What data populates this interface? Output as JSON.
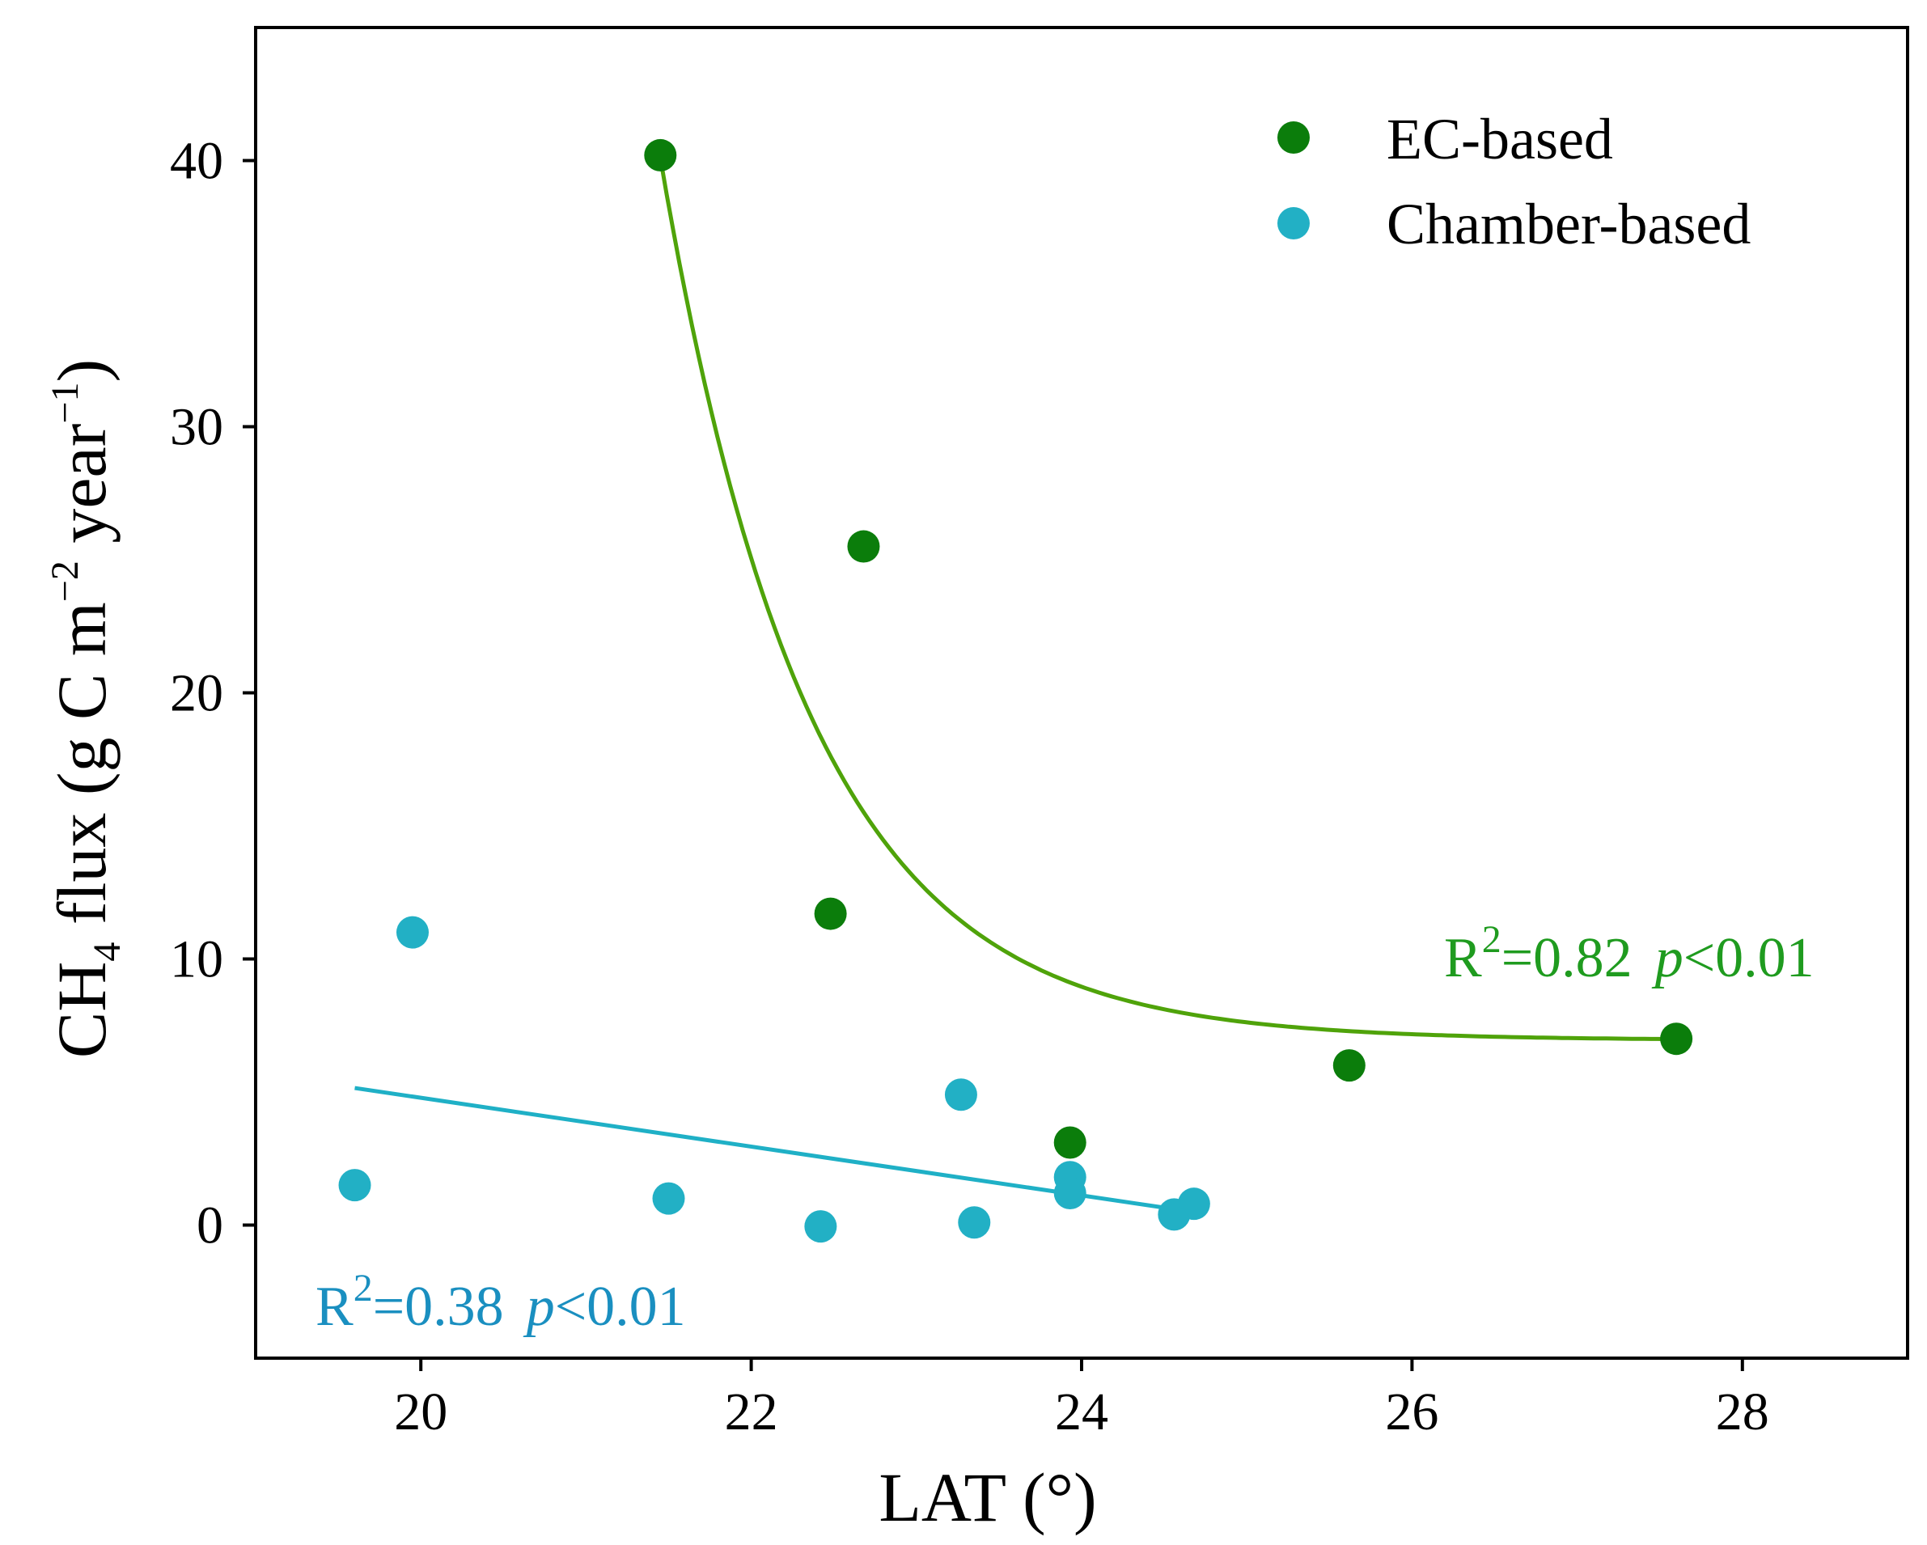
{
  "chart_data": {
    "type": "scatter",
    "xlabel": "LAT (°)",
    "ylabel_parts": {
      "main": "CH",
      "sub": "4",
      "rest1": " flux (g C m",
      "sup1": "−2",
      "rest2": " year",
      "sup2": "−1",
      "rest3": ")"
    },
    "xlim": [
      19.0,
      29.0
    ],
    "ylim": [
      -5,
      45
    ],
    "xticks": [
      20,
      22,
      24,
      26,
      28
    ],
    "xtick_labels": [
      "20",
      "22",
      "24",
      "26",
      "28"
    ],
    "yticks": [
      0,
      10,
      20,
      30,
      40
    ],
    "ytick_labels": [
      "0",
      "10",
      "20",
      "30",
      "40"
    ],
    "legend_position": "top-right",
    "series": [
      {
        "name": "EC-based",
        "color": "#0b7d0b",
        "points": [
          {
            "x": 21.45,
            "y": 40.2
          },
          {
            "x": 22.68,
            "y": 25.5
          },
          {
            "x": 22.48,
            "y": 11.7
          },
          {
            "x": 23.93,
            "y": 3.1
          },
          {
            "x": 25.62,
            "y": 6.0
          },
          {
            "x": 27.6,
            "y": 7.0
          }
        ],
        "fit": {
          "type": "exponential-decay",
          "x_range": [
            21.45,
            27.6
          ],
          "color": "#4fa30a"
        },
        "stat": {
          "r_label": "R",
          "r_sup": "2",
          "r_value": "=0.82",
          "p_label": "p",
          "p_value": "<0.01"
        }
      },
      {
        "name": "Chamber-based",
        "color": "#22b0c5",
        "points": [
          {
            "x": 19.6,
            "y": 1.5
          },
          {
            "x": 19.95,
            "y": 11.0
          },
          {
            "x": 21.5,
            "y": 1.0
          },
          {
            "x": 22.42,
            "y": -0.05
          },
          {
            "x": 23.27,
            "y": 4.9
          },
          {
            "x": 23.35,
            "y": 0.1
          },
          {
            "x": 23.93,
            "y": 1.8
          },
          {
            "x": 23.93,
            "y": 1.2
          },
          {
            "x": 24.56,
            "y": 0.4
          },
          {
            "x": 24.68,
            "y": 0.8
          }
        ],
        "fit": {
          "type": "linear",
          "x_range": [
            19.6,
            24.56
          ],
          "y_range": [
            5.15,
            0.6
          ],
          "color": "#1fb0c6"
        },
        "stat": {
          "r_label": "R",
          "r_sup": "2",
          "r_value": "=0.38",
          "p_label": "p",
          "p_value": "<0.01"
        }
      }
    ],
    "ec_stat_color": "#1f9b1f",
    "chamber_stat_color": "#1a8fc0"
  }
}
